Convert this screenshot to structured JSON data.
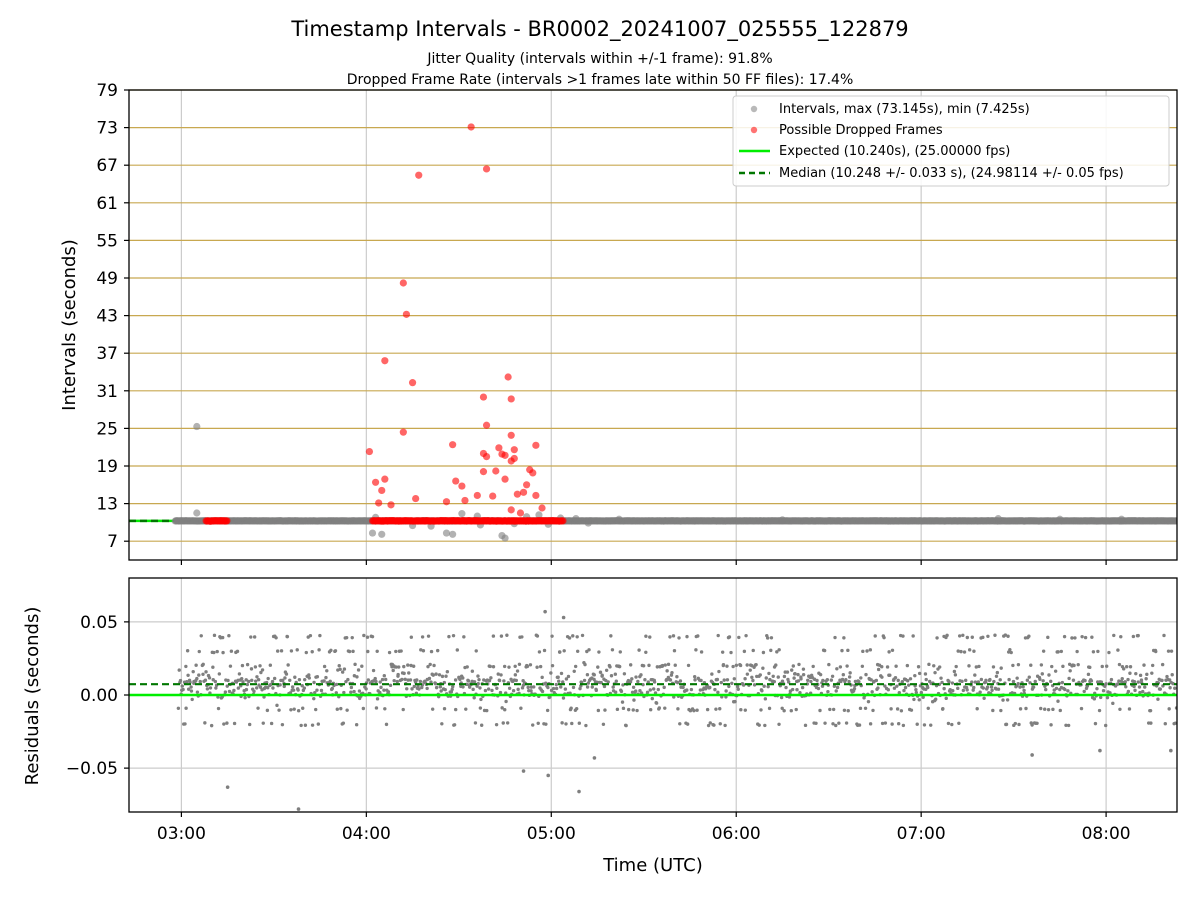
{
  "title": "Timestamp Intervals - BR0002_20241007_025555_122879",
  "subtitle_line1": "Jitter Quality (intervals within +/-1 frame): 91.8%",
  "subtitle_line2": "Dropped Frame Rate (intervals >1 frames late within 50 FF files): 17.4%",
  "colors": {
    "intervals": "#7f7f7f",
    "dropped": "#ff0000",
    "expected": "#00ee00",
    "median": "#007700",
    "gridline_gold": "#c8a850",
    "grid_gray": "#cccccc"
  },
  "chart_data": [
    {
      "type": "scatter",
      "panel": "top",
      "ylabel": "Intervals (seconds)",
      "ylim": [
        4,
        79
      ],
      "xlim": [
        "02:43",
        "08:23"
      ],
      "yticks": [
        "7",
        "13",
        "19",
        "25",
        "31",
        "37",
        "43",
        "49",
        "55",
        "61",
        "67",
        "73",
        "79"
      ],
      "grid": "horizontal gold lines at y ticks, vertical gray lines at x ticks",
      "legend_position": "top-right",
      "legend": [
        "Intervals, max (73.145s), min (7.425s)",
        "Possible Dropped Frames",
        "Expected (10.240s), (25.00000 fps)",
        "Median (10.248 +/- 0.033 s), (24.98114 +/- 0.05 fps)"
      ],
      "reference_lines": {
        "expected": 10.24,
        "median": 10.248
      },
      "baseline_band": {
        "y": 10.24,
        "x_range": [
          "02:58",
          "08:23"
        ]
      },
      "series": [
        {
          "name": "Intervals, max (73.145s), min (7.425s)",
          "points": [
            [
              "03:05",
              25.3
            ],
            [
              "03:05",
              11.5
            ],
            [
              "04:02",
              8.3
            ],
            [
              "04:05",
              8.1
            ],
            [
              "04:03",
              10.8
            ],
            [
              "04:15",
              9.5
            ],
            [
              "04:21",
              9.4
            ],
            [
              "04:26",
              8.3
            ],
            [
              "04:28",
              8.1
            ],
            [
              "04:31",
              11.4
            ],
            [
              "04:37",
              9.6
            ],
            [
              "04:48",
              9.8
            ],
            [
              "04:36",
              11.0
            ],
            [
              "04:44",
              7.9
            ],
            [
              "04:45",
              7.5
            ],
            [
              "04:52",
              10.9
            ],
            [
              "04:59",
              9.7
            ],
            [
              "04:56",
              11.2
            ],
            [
              "05:03",
              10.7
            ],
            [
              "05:08",
              10.6
            ],
            [
              "05:12",
              9.9
            ],
            [
              "05:22",
              10.5
            ],
            [
              "06:15",
              10.4
            ],
            [
              "07:25",
              10.6
            ],
            [
              "07:45",
              10.5
            ],
            [
              "08:05",
              10.5
            ]
          ]
        },
        {
          "name": "Possible Dropped Frames",
          "band_x_ranges": [
            [
              "03:08",
              "03:15"
            ],
            [
              "04:02",
              "05:04"
            ]
          ],
          "band_y": 10.24,
          "points": [
            [
              "04:17",
              65.4
            ],
            [
              "04:34",
              73.1
            ],
            [
              "04:39",
              66.4
            ],
            [
              "04:12",
              48.2
            ],
            [
              "04:13",
              43.2
            ],
            [
              "04:06",
              35.8
            ],
            [
              "04:15",
              32.3
            ],
            [
              "04:12",
              24.4
            ],
            [
              "04:01",
              21.3
            ],
            [
              "04:03",
              16.4
            ],
            [
              "04:05",
              15.1
            ],
            [
              "04:06",
              16.9
            ],
            [
              "04:04",
              13.1
            ],
            [
              "04:08",
              12.8
            ],
            [
              "04:16",
              13.8
            ],
            [
              "04:28",
              22.4
            ],
            [
              "04:29",
              16.6
            ],
            [
              "04:31",
              15.8
            ],
            [
              "04:32",
              13.5
            ],
            [
              "04:26",
              13.3
            ],
            [
              "04:36",
              14.3
            ],
            [
              "04:38",
              21.0
            ],
            [
              "04:39",
              20.5
            ],
            [
              "04:38",
              18.1
            ],
            [
              "04:38",
              30.0
            ],
            [
              "04:39",
              25.5
            ],
            [
              "04:41",
              14.2
            ],
            [
              "04:42",
              18.2
            ],
            [
              "04:43",
              21.9
            ],
            [
              "04:44",
              20.9
            ],
            [
              "04:45",
              20.7
            ],
            [
              "04:45",
              16.9
            ],
            [
              "04:46",
              33.2
            ],
            [
              "04:47",
              29.7
            ],
            [
              "04:47",
              23.9
            ],
            [
              "04:47",
              19.8
            ],
            [
              "04:48",
              21.6
            ],
            [
              "04:48",
              20.2
            ],
            [
              "04:49",
              14.5
            ],
            [
              "04:51",
              14.8
            ],
            [
              "04:52",
              16.0
            ],
            [
              "04:53",
              18.4
            ],
            [
              "04:54",
              17.9
            ],
            [
              "04:55",
              22.3
            ],
            [
              "04:55",
              14.3
            ],
            [
              "04:47",
              12.0
            ],
            [
              "04:50",
              11.5
            ],
            [
              "04:57",
              12.3
            ]
          ]
        }
      ]
    },
    {
      "type": "scatter",
      "panel": "bottom",
      "xlabel": "Time (UTC)",
      "ylabel": "Residuals (seconds)",
      "ylim": [
        -0.08,
        0.08
      ],
      "yticks": [
        "0.05",
        "0.00",
        "−0.05"
      ],
      "xticks": [
        "03:00",
        "04:00",
        "05:00",
        "06:00",
        "07:00",
        "08:00"
      ],
      "reference_lines": {
        "expected": 0.0,
        "median": 0.0074
      },
      "residual_cloud": {
        "x_range": [
          "02:59",
          "08:23"
        ],
        "core_y_range": [
          -0.022,
          0.045
        ],
        "outliers": [
          [
            "03:15",
            -0.063
          ],
          [
            "03:38",
            -0.078
          ],
          [
            "04:51",
            -0.052
          ],
          [
            "04:59",
            -0.055
          ],
          [
            "05:09",
            -0.066
          ],
          [
            "04:58",
            0.057
          ],
          [
            "05:04",
            0.053
          ],
          [
            "07:36",
            -0.041
          ],
          [
            "05:14",
            -0.043
          ],
          [
            "07:58",
            -0.038
          ],
          [
            "08:21",
            -0.038
          ]
        ]
      },
      "grid": "gray lines at x and y ticks"
    }
  ]
}
